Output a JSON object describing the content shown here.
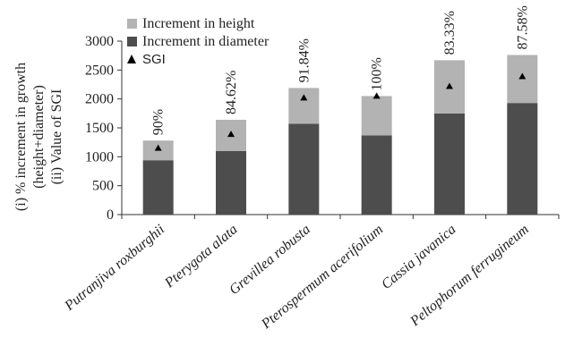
{
  "chart_data": {
    "type": "bar",
    "stacked": true,
    "categories": [
      "Putranjiva roxburghii",
      "Pterygota alata",
      "Grevillea robusta",
      "Pterospermum acerifolium",
      "Cassia javanica",
      "Peltophorum ferrugineum"
    ],
    "series": [
      {
        "name": "Increment in diameter",
        "values": [
          940,
          1100,
          1570,
          1370,
          1750,
          1930
        ],
        "color": "#4d4d4d"
      },
      {
        "name": "Increment in height",
        "values": [
          340,
          540,
          620,
          680,
          920,
          830
        ],
        "color": "#b3b3b3"
      }
    ],
    "sgi": {
      "name": "SGI",
      "values": [
        1150,
        1390,
        2020,
        2050,
        2220,
        2390
      ],
      "marker": "triangle",
      "color": "#000000"
    },
    "bar_labels": [
      "90%",
      "84.62%",
      "91.84%",
      "100%",
      "83.33%",
      "87.58%"
    ],
    "ylabel_lines": [
      "(i) % increment in growth",
      "(height+diameter)",
      "(ii) Value of SGI"
    ],
    "ylim": [
      0,
      3000
    ],
    "yticks": [
      0,
      500,
      1000,
      1500,
      2000,
      2500,
      3000
    ],
    "ytick_labels": [
      "0",
      "500",
      "1000",
      "1500",
      "2000",
      "2500",
      "3000"
    ],
    "legend": {
      "placement": "top-left",
      "items": [
        {
          "label": "Increment in height",
          "swatch": "#b3b3b3",
          "kind": "box"
        },
        {
          "label": "Increment in diameter",
          "swatch": "#4d4d4d",
          "kind": "box"
        },
        {
          "label": "SGI",
          "swatch": "#000000",
          "kind": "triangle"
        }
      ]
    },
    "grid": false
  }
}
